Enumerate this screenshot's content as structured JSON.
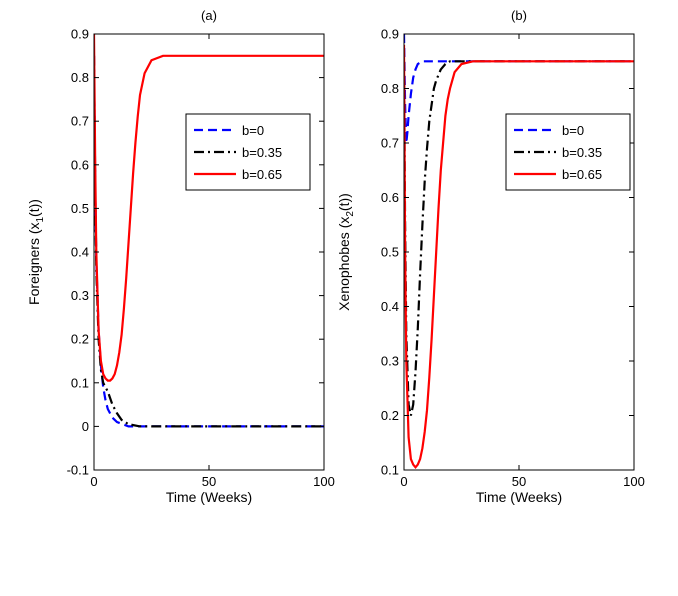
{
  "chart_data": [
    {
      "type": "line",
      "title": "(a)",
      "xlabel": "Time (Weeks)",
      "ylabel_main": "Foreigners (x",
      "ylabel_sub": "1",
      "ylabel_tail": "(t))",
      "xlim": [
        0,
        100
      ],
      "ylim": [
        -0.1,
        0.9
      ],
      "xticks": [
        0,
        50,
        100
      ],
      "yticks": [
        -0.1,
        0,
        0.1,
        0.2,
        0.3,
        0.4,
        0.5,
        0.6,
        0.7,
        0.8,
        0.9
      ],
      "grid": false,
      "legend_position": "top-right",
      "series": [
        {
          "name": "b=0",
          "color": "#0000ff",
          "style": "dashed",
          "x": [
            0,
            0.5,
            1,
            2,
            3,
            4,
            5,
            6,
            8,
            10,
            15,
            20,
            30,
            50,
            75,
            100
          ],
          "y": [
            0.85,
            0.55,
            0.38,
            0.22,
            0.14,
            0.09,
            0.06,
            0.04,
            0.02,
            0.01,
            0.0,
            0.0,
            0.0,
            0.0,
            0.0,
            0.0
          ]
        },
        {
          "name": "b=0.35",
          "color": "#000000",
          "style": "dashdot",
          "x": [
            0,
            0.5,
            1,
            2,
            3,
            4,
            5,
            6,
            8,
            10,
            12,
            15,
            20,
            30,
            50,
            75,
            100
          ],
          "y": [
            0.85,
            0.55,
            0.36,
            0.2,
            0.13,
            0.1,
            0.09,
            0.08,
            0.05,
            0.03,
            0.015,
            0.005,
            0.0,
            0.0,
            0.0,
            0.0,
            0.0
          ]
        },
        {
          "name": "b=0.65",
          "color": "#ff0000",
          "style": "solid",
          "x": [
            0,
            0.5,
            1,
            2,
            3,
            4,
            5,
            6,
            7,
            8,
            9,
            10,
            11,
            12,
            13,
            14,
            15,
            16,
            17,
            18,
            19,
            20,
            22,
            25,
            30,
            40,
            50,
            75,
            100
          ],
          "y": [
            0.9,
            0.6,
            0.4,
            0.22,
            0.15,
            0.12,
            0.11,
            0.105,
            0.105,
            0.11,
            0.12,
            0.14,
            0.17,
            0.21,
            0.27,
            0.34,
            0.42,
            0.5,
            0.58,
            0.65,
            0.71,
            0.76,
            0.81,
            0.84,
            0.85,
            0.85,
            0.85,
            0.85,
            0.85
          ]
        }
      ]
    },
    {
      "type": "line",
      "title": "(b)",
      "xlabel": "Time (Weeks)",
      "ylabel_main": "Xenophobes (x",
      "ylabel_sub": "2",
      "ylabel_tail": "(t))",
      "xlim": [
        0,
        100
      ],
      "ylim": [
        0.1,
        0.9
      ],
      "xticks": [
        0,
        50,
        100
      ],
      "yticks": [
        0.1,
        0.2,
        0.3,
        0.4,
        0.5,
        0.6,
        0.7,
        0.8,
        0.9
      ],
      "grid": false,
      "legend_position": "top-right",
      "series": [
        {
          "name": "b=0",
          "color": "#0000ff",
          "style": "dashed",
          "x": [
            0,
            0.5,
            1,
            1.5,
            2,
            3,
            4,
            5,
            6,
            8,
            10,
            15,
            20,
            50,
            100
          ],
          "y": [
            0.9,
            0.77,
            0.7,
            0.72,
            0.75,
            0.79,
            0.82,
            0.835,
            0.845,
            0.85,
            0.85,
            0.85,
            0.85,
            0.85,
            0.85
          ]
        },
        {
          "name": "b=0.35",
          "color": "#000000",
          "style": "dashdot",
          "x": [
            0,
            0.5,
            1,
            2,
            3,
            4,
            5,
            6,
            7,
            8,
            9,
            10,
            11,
            12,
            13,
            14,
            15,
            16,
            18,
            20,
            22,
            25,
            30,
            50,
            100
          ],
          "y": [
            0.85,
            0.55,
            0.35,
            0.22,
            0.2,
            0.22,
            0.28,
            0.36,
            0.46,
            0.55,
            0.63,
            0.69,
            0.74,
            0.77,
            0.8,
            0.815,
            0.825,
            0.835,
            0.845,
            0.85,
            0.85,
            0.85,
            0.85,
            0.85,
            0.85
          ]
        },
        {
          "name": "b=0.65",
          "color": "#ff0000",
          "style": "solid",
          "x": [
            0,
            0.5,
            1,
            2,
            3,
            4,
            5,
            6,
            7,
            8,
            9,
            10,
            11,
            12,
            13,
            14,
            15,
            16,
            17,
            18,
            19,
            20,
            22,
            25,
            30,
            50,
            100
          ],
          "y": [
            0.88,
            0.5,
            0.3,
            0.16,
            0.12,
            0.11,
            0.105,
            0.11,
            0.12,
            0.14,
            0.17,
            0.21,
            0.27,
            0.34,
            0.42,
            0.5,
            0.58,
            0.65,
            0.7,
            0.75,
            0.78,
            0.8,
            0.83,
            0.845,
            0.85,
            0.85,
            0.85
          ]
        }
      ]
    }
  ]
}
